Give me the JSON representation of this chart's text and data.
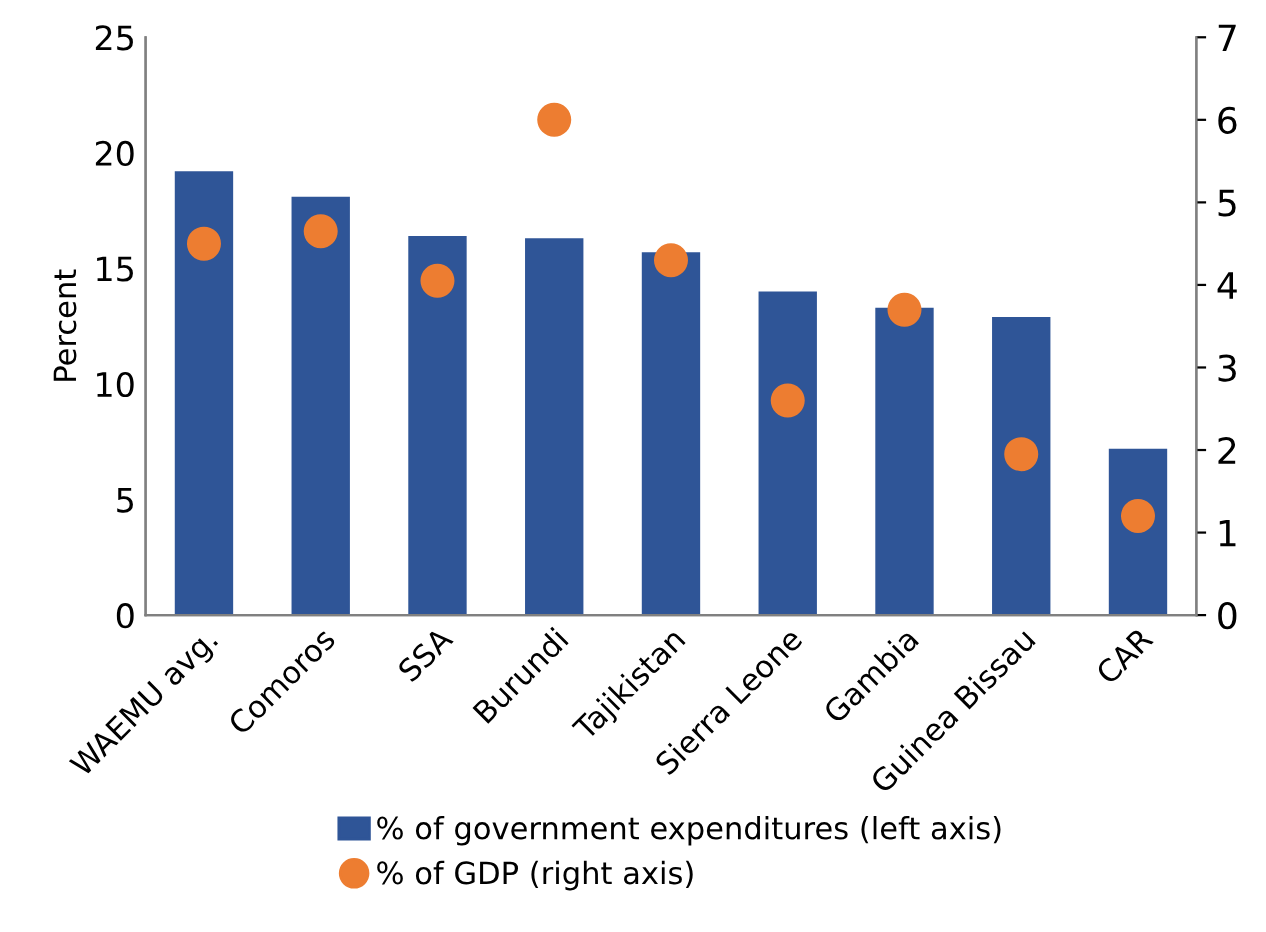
{
  "chart_data": {
    "type": "bar",
    "ylabel": "Percent",
    "categories": [
      "WAEMU avg.",
      "Comoros",
      "SSA",
      "Burundi",
      "Tajikistan",
      "Sierra Leone",
      "Gambia",
      "Guinea Bissau",
      "CAR"
    ],
    "series": [
      {
        "name": "% of government expenditures (left axis)",
        "color": "#2f5597",
        "values": [
          19.2,
          18.1,
          16.4,
          16.3,
          15.7,
          14.0,
          13.3,
          12.9,
          7.2
        ]
      },
      {
        "name": "% of GDP (right axis)",
        "color": "#ed7d31",
        "type": "scatter",
        "axis": "y2",
        "marker": "circle",
        "values": [
          4.5,
          4.65,
          4.05,
          6.0,
          4.3,
          2.6,
          3.7,
          1.95,
          1.2
        ]
      }
    ],
    "ylim": [
      0,
      25
    ],
    "yticks": [
      0,
      5,
      10,
      15,
      20,
      25
    ],
    "y2lim": [
      0,
      7
    ],
    "y2ticks": [
      0,
      1,
      2,
      3,
      4,
      5,
      6,
      7
    ],
    "grid": false,
    "legend": "bottom"
  }
}
